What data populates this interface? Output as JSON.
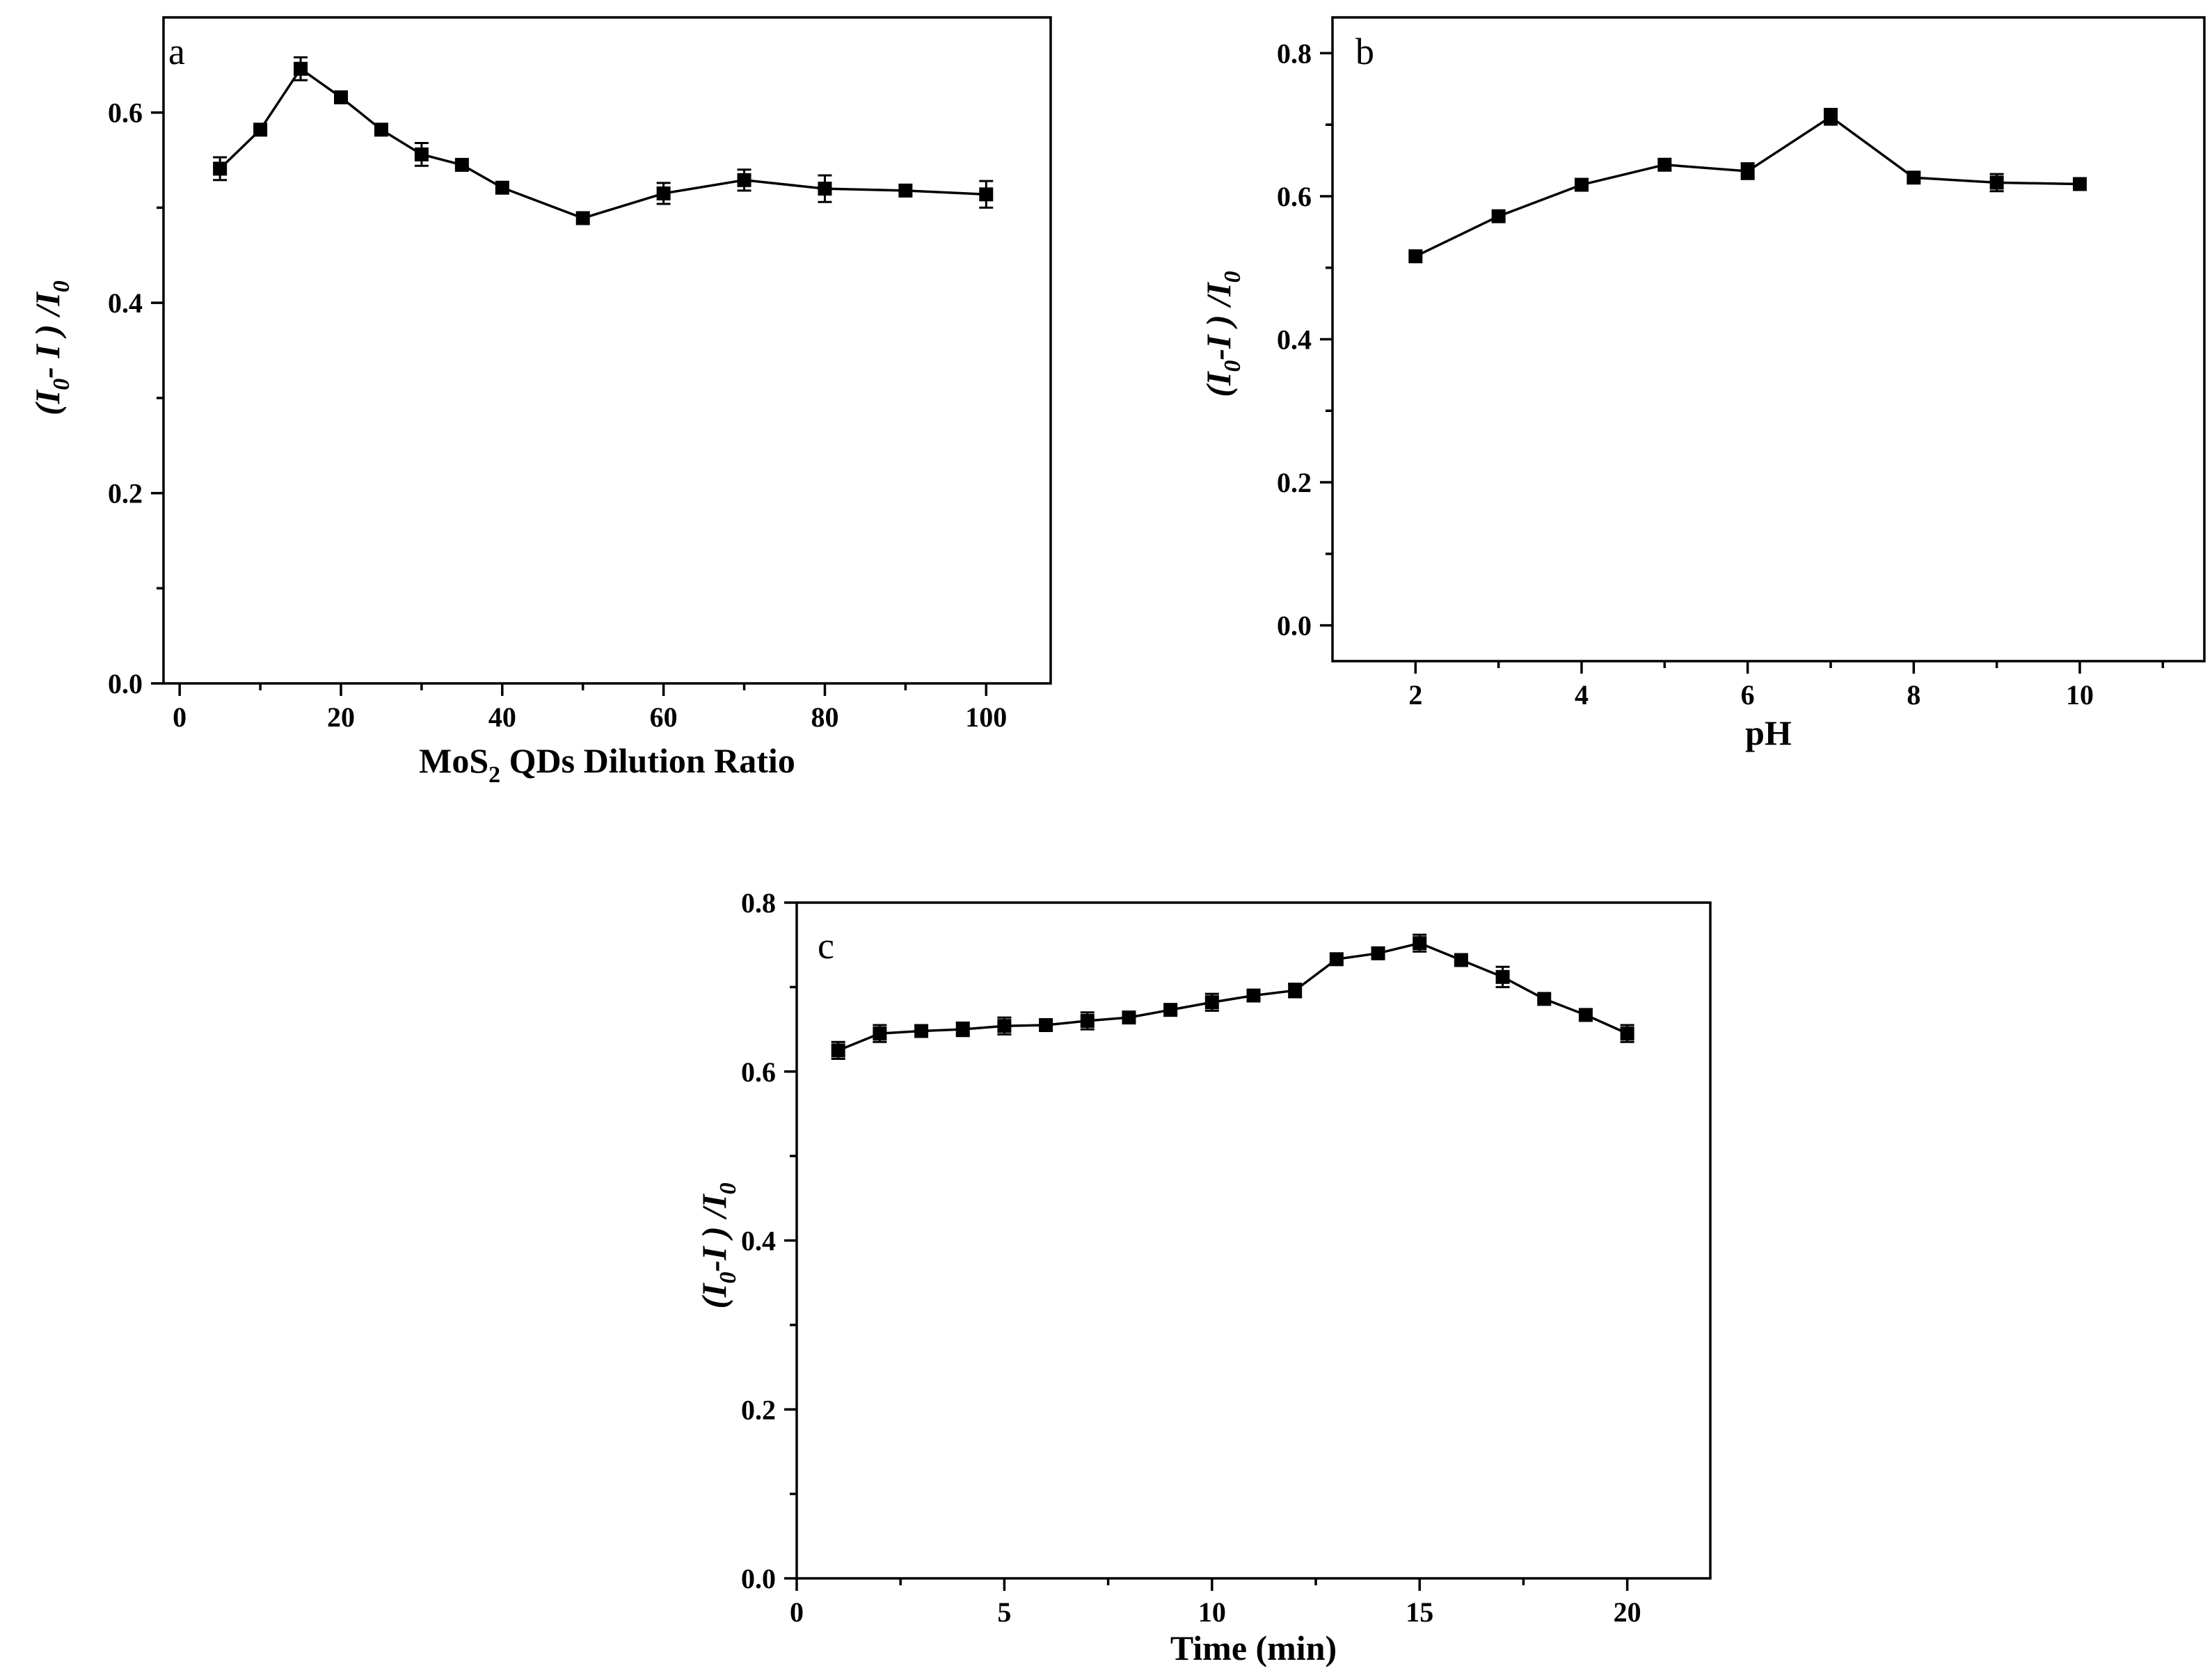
{
  "chart_data": [
    {
      "id": "a",
      "type": "line",
      "panel_label": "a",
      "title": "",
      "xlabel_main": "MoS",
      "xlabel_sub": "2",
      "xlabel_rest": " QDs Dilution Ratio",
      "ylabel": {
        "open": "(",
        "I1": "I",
        "sub1": "0",
        "mid": "- I ) /",
        "I2": "I",
        "sub2": "0"
      },
      "xlim": [
        -2,
        108
      ],
      "ylim": [
        0,
        0.7
      ],
      "xticks": [
        0,
        20,
        40,
        60,
        80,
        100
      ],
      "xtick_labels": [
        "0",
        "20",
        "40",
        "60",
        "80",
        "100"
      ],
      "xminor": [
        10,
        30,
        50,
        70,
        90
      ],
      "yticks": [
        0.0,
        0.2,
        0.4,
        0.6
      ],
      "ytick_labels": [
        "0.0",
        "0.2",
        "0.4",
        "0.6"
      ],
      "yminor": [
        0.1,
        0.3,
        0.5
      ],
      "x": [
        5,
        10,
        15,
        20,
        25,
        30,
        35,
        40,
        50,
        60,
        70,
        80,
        90,
        100
      ],
      "y": [
        0.541,
        0.582,
        0.646,
        0.616,
        0.582,
        0.556,
        0.545,
        0.521,
        0.489,
        0.515,
        0.529,
        0.52,
        0.518,
        0.514
      ],
      "err": [
        0.012,
        0.0,
        0.012,
        0.0,
        0.0,
        0.012,
        0.0,
        0.0,
        0.0,
        0.011,
        0.011,
        0.014,
        0.0,
        0.014
      ]
    },
    {
      "id": "b",
      "type": "line",
      "panel_label": "b",
      "title": "",
      "xlabel": "pH",
      "ylabel": {
        "open": "(",
        "I1": "I",
        "sub1": "0",
        "mid": "-I ) /",
        "I2": "I",
        "sub2": "0"
      },
      "xlim": [
        1,
        11.5
      ],
      "ylim": [
        -0.05,
        0.85
      ],
      "xticks": [
        2,
        4,
        6,
        8,
        10
      ],
      "xtick_labels": [
        "2",
        "4",
        "6",
        "8",
        "10"
      ],
      "xminor": [
        3,
        5,
        7,
        9,
        11
      ],
      "yticks": [
        0.0,
        0.2,
        0.4,
        0.6,
        0.8
      ],
      "ytick_labels": [
        "0.0",
        "0.2",
        "0.4",
        "0.6",
        "0.8"
      ],
      "yminor": [
        0.1,
        0.3,
        0.5,
        0.7
      ],
      "x": [
        2,
        3,
        4,
        5,
        6,
        7,
        8,
        9,
        10
      ],
      "y": [
        0.516,
        0.572,
        0.616,
        0.644,
        0.635,
        0.711,
        0.626,
        0.619,
        0.617
      ],
      "err": [
        0.0,
        0.0,
        0.0,
        0.0,
        0.011,
        0.011,
        0.0,
        0.012,
        0.0
      ]
    },
    {
      "id": "c",
      "type": "line",
      "panel_label": "c",
      "title": "",
      "xlabel": "Time (min)",
      "ylabel": {
        "open": "(",
        "I1": "I",
        "sub1": "0",
        "mid": "-I ) /",
        "I2": "I",
        "sub2": "0"
      },
      "xlim": [
        0,
        22
      ],
      "ylim": [
        0,
        0.8
      ],
      "xticks": [
        0,
        5,
        10,
        15,
        20
      ],
      "xtick_labels": [
        "0",
        "5",
        "10",
        "15",
        "20"
      ],
      "xminor": [
        2.5,
        7.5,
        12.5,
        17.5
      ],
      "yticks": [
        0.0,
        0.2,
        0.4,
        0.6,
        0.8
      ],
      "ytick_labels": [
        "0.0",
        "0.2",
        "0.4",
        "0.6",
        "0.8"
      ],
      "yminor": [
        0.1,
        0.3,
        0.5,
        0.7
      ],
      "x": [
        1,
        2,
        3,
        4,
        5,
        6,
        7,
        8,
        9,
        10,
        11,
        12,
        13,
        14,
        15,
        16,
        17,
        18,
        19,
        20
      ],
      "y": [
        0.625,
        0.645,
        0.648,
        0.65,
        0.654,
        0.655,
        0.66,
        0.664,
        0.673,
        0.682,
        0.69,
        0.696,
        0.733,
        0.74,
        0.752,
        0.732,
        0.712,
        0.686,
        0.667,
        0.645
      ],
      "err": [
        0.01,
        0.01,
        0.0,
        0.008,
        0.01,
        0.0,
        0.01,
        0.0,
        0.0,
        0.01,
        0.0,
        0.008,
        0.0,
        0.0,
        0.01,
        0.0,
        0.012,
        0.0,
        0.0,
        0.01
      ]
    }
  ]
}
